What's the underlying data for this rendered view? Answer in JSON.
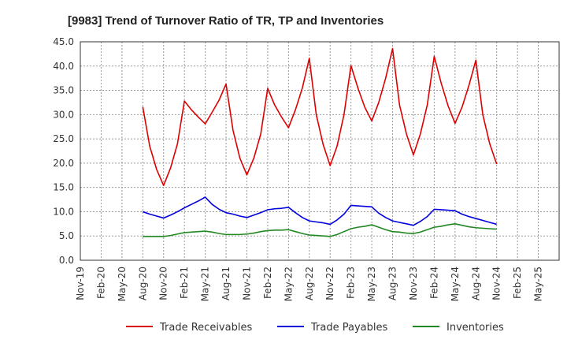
{
  "chart_data": {
    "type": "line",
    "title": "[9983]  Trend of Turnover Ratio of TR, TP and Inventories",
    "xlabel": "",
    "ylabel": "",
    "ylim": [
      0,
      45
    ],
    "yticks": [
      "0.0",
      "5.0",
      "10.0",
      "15.0",
      "20.0",
      "25.0",
      "30.0",
      "35.0",
      "40.0",
      "45.0"
    ],
    "xtick_labels": [
      "Nov-19",
      "Feb-20",
      "May-20",
      "Aug-20",
      "Nov-20",
      "Feb-21",
      "May-21",
      "Aug-21",
      "Nov-21",
      "Feb-22",
      "May-22",
      "Aug-22",
      "Nov-22",
      "Feb-23",
      "May-23",
      "Aug-23",
      "Nov-23",
      "Feb-24",
      "May-24",
      "Aug-24",
      "Nov-24",
      "Feb-25",
      "May-25"
    ],
    "grid": true,
    "legend": "bottom",
    "x": [
      "Aug-20",
      "Sep-20",
      "Oct-20",
      "Nov-20",
      "Dec-20",
      "Jan-21",
      "Feb-21",
      "Mar-21",
      "Apr-21",
      "May-21",
      "Jun-21",
      "Jul-21",
      "Aug-21",
      "Sep-21",
      "Oct-21",
      "Nov-21",
      "Dec-21",
      "Jan-22",
      "Feb-22",
      "Mar-22",
      "Apr-22",
      "May-22",
      "Jun-22",
      "Jul-22",
      "Aug-22",
      "Sep-22",
      "Oct-22",
      "Nov-22",
      "Dec-22",
      "Jan-23",
      "Feb-23",
      "Mar-23",
      "Apr-23",
      "May-23",
      "Jun-23",
      "Jul-23",
      "Aug-23",
      "Sep-23",
      "Oct-23",
      "Nov-23",
      "Dec-23",
      "Jan-24",
      "Feb-24",
      "Mar-24",
      "Apr-24",
      "May-24",
      "Jun-24",
      "Jul-24",
      "Aug-24",
      "Sep-24",
      "Oct-24",
      "Nov-24"
    ],
    "series": [
      {
        "name": "Trade Receivables",
        "color": "#dd0000",
        "values": [
          31.6,
          23.5,
          18.7,
          15.4,
          19.0,
          24.0,
          32.8,
          31.0,
          29.5,
          28.1,
          30.5,
          33.0,
          36.3,
          26.8,
          21.0,
          17.6,
          21.0,
          26.0,
          35.4,
          32.0,
          29.5,
          27.3,
          31.0,
          35.5,
          41.6,
          30.0,
          23.8,
          19.5,
          23.5,
          30.0,
          40.1,
          35.5,
          31.5,
          28.7,
          32.5,
          37.5,
          43.6,
          32.0,
          26.0,
          21.7,
          26.0,
          32.0,
          42.0,
          36.5,
          31.8,
          28.2,
          31.5,
          36.0,
          41.2,
          30.0,
          24.0,
          19.8
        ]
      },
      {
        "name": "Trade Payables",
        "color": "#0000dd",
        "values": [
          10.0,
          9.5,
          9.1,
          8.7,
          9.3,
          10.0,
          10.8,
          11.5,
          12.2,
          13.0,
          11.5,
          10.5,
          9.8,
          9.5,
          9.1,
          8.8,
          9.3,
          9.8,
          10.4,
          10.6,
          10.7,
          10.9,
          9.8,
          8.8,
          8.1,
          7.9,
          7.7,
          7.4,
          8.3,
          9.5,
          11.3,
          11.2,
          11.1,
          11.0,
          9.7,
          8.8,
          8.1,
          7.8,
          7.5,
          7.2,
          8.0,
          9.0,
          10.5,
          10.4,
          10.3,
          10.2,
          9.5,
          9.0,
          8.6,
          8.2,
          7.8,
          7.4
        ]
      },
      {
        "name": "Inventories",
        "color": "#228822",
        "values": [
          4.9,
          4.9,
          4.9,
          4.9,
          5.1,
          5.4,
          5.7,
          5.8,
          5.9,
          6.0,
          5.8,
          5.5,
          5.3,
          5.3,
          5.3,
          5.4,
          5.6,
          5.9,
          6.1,
          6.2,
          6.2,
          6.3,
          5.9,
          5.5,
          5.2,
          5.1,
          5.0,
          4.9,
          5.3,
          5.9,
          6.5,
          6.8,
          7.0,
          7.3,
          6.8,
          6.3,
          5.9,
          5.8,
          5.6,
          5.5,
          5.8,
          6.3,
          6.8,
          7.0,
          7.3,
          7.5,
          7.2,
          6.9,
          6.7,
          6.6,
          6.5,
          6.4
        ]
      }
    ]
  }
}
